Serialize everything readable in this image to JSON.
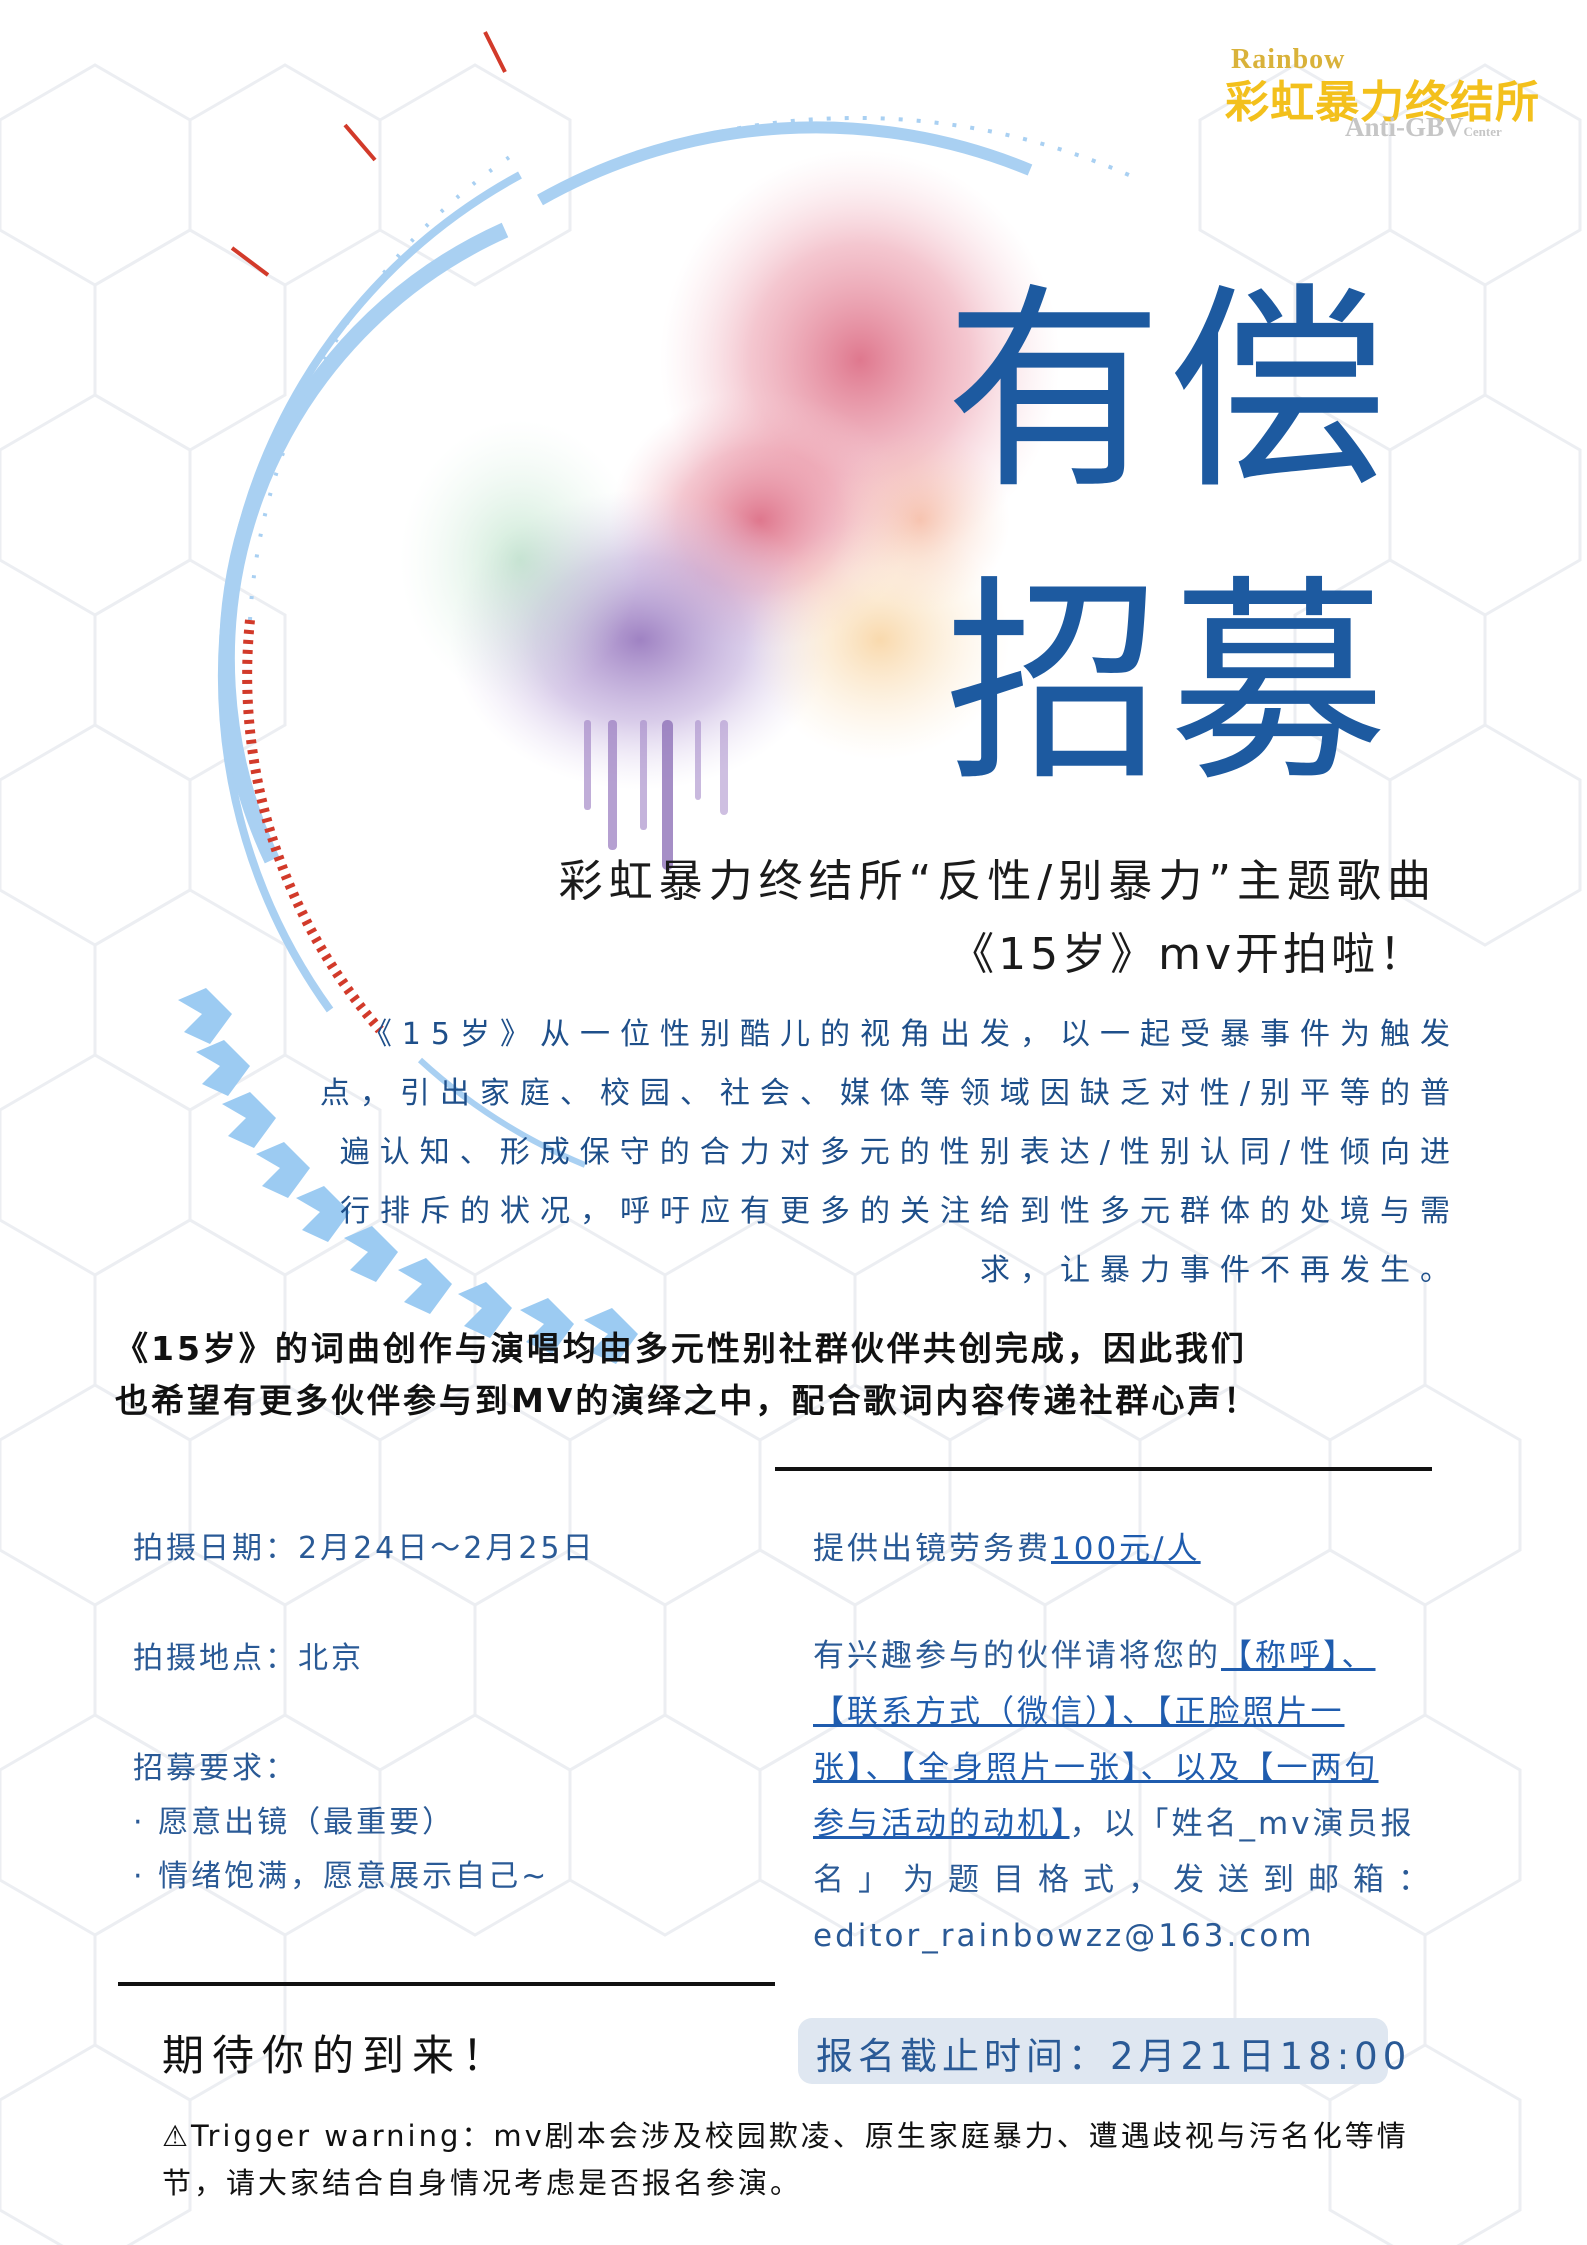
{
  "logo": {
    "top_text": "Rainbow",
    "main_text": "彩虹暴力终结所",
    "sub_text": "Anti-GBV",
    "sub_small": "Center"
  },
  "title": {
    "line1": "有偿",
    "line2": "招募"
  },
  "subtitle": {
    "line1": "彩虹暴力终结所“反性/别暴力”主题歌曲",
    "line2": "《15岁》mv开拍啦！"
  },
  "intro": {
    "lines": [
      "《15岁》从一位性别酷儿的视角出发，以一起受暴事件为触发",
      "点，引出家庭、校园、社会、媒体等领域因缺乏对性/别平等的普",
      "遍认知、形成保守的合力对多元的性别表达/性别认同/性倾向进",
      "行排斥的状况，呼吁应有更多的关注给到性多元群体的处境与需",
      "求，让暴力事件不再发生。"
    ]
  },
  "highlight": {
    "lines": [
      "《15岁》的词曲创作与演唱均由多元性别社群伙伴共创完成，因此我们",
      "也希望有更多伙伴参与到MV的演绎之中，配合歌词内容传递社群心声！"
    ]
  },
  "details": {
    "date": "拍摄日期：2月24日～2月25日",
    "location": "拍摄地点：北京",
    "requirements_title": "招募要求：",
    "requirements": [
      "· 愿意出镜（最重要）",
      "· 情绪饱满，愿意展示自己~"
    ]
  },
  "compensation": {
    "prefix": "提供出镜劳务费",
    "amount": "100元/人"
  },
  "apply": {
    "l1_text": "有兴趣参与的伙伴请将您的",
    "l1_link": "【称呼】、",
    "l2_link": "【联系方式（微信）】、【正脸照片一",
    "l3_link": "张】、【全身照片一张】、以及【一两句",
    "l4_link": "参与活动的动机】",
    "l4_text": "，以「姓名_mv演员报",
    "l5_text": "名」为题目格式，发送到邮箱：",
    "email": "editor_rainbowzz@163.com"
  },
  "closing": "期待你的到来！",
  "deadline": "报名截止时间：2月21日18:00",
  "warning": {
    "line1": "⚠Trigger warning：mv剧本会涉及校园欺凌、原生家庭暴力、遭遇歧视与污名化等情",
    "line2": "节，请大家结合自身情况考虑是否报名参演。"
  },
  "colors": {
    "title_blue": "#1d5aa0",
    "text_blue": "#2a5a96",
    "logo_yellow": "#f3c01c",
    "ring_blue": "#a9d0f2",
    "tick_red": "#d23a2a",
    "deadline_bg": "#dfe7f1"
  }
}
